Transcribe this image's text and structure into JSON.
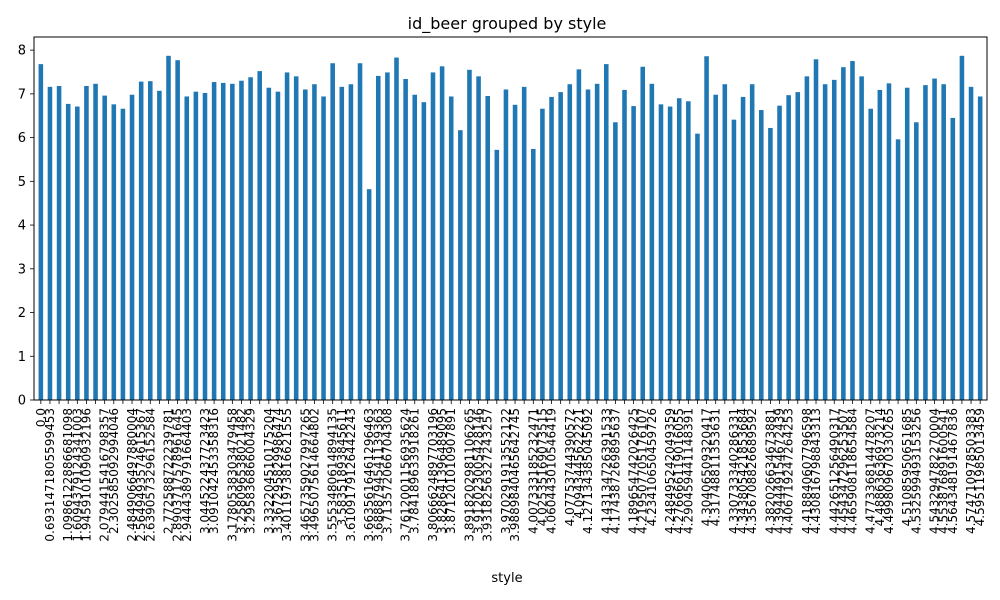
{
  "chart_data": {
    "type": "bar",
    "title": "id_beer grouped by style",
    "xlabel": "style",
    "ylabel": "",
    "ylim": [
      0,
      8.3
    ],
    "yticks": [
      0,
      1,
      2,
      3,
      4,
      5,
      6,
      7,
      8
    ],
    "ytick_labels": [
      "0",
      "1",
      "2",
      "3",
      "4",
      "5",
      "6",
      "7",
      "8"
    ],
    "bar_color": "#1f77b4",
    "grid": false,
    "legend": "none",
    "x_tick_labels_visible": [
      "0.0",
      "0.6931471805599453",
      "1.0986122886681098",
      "1.6094379124341003",
      "1.9459101090932196",
      "2.0794415416798357",
      "2.302585092994046",
      "2.4849066497880004",
      "2.5649493574615367",
      "2.6390573296152584",
      "2.772588722239781",
      "2.8903717578961645",
      "2.9444389791664403",
      "3.044522437723423",
      "3.091042453358316",
      "3.1780538303479458",
      "3.258096538021482",
      "3.295836866004329",
      "3.332204510175204",
      "3.367295829986474",
      "3.4011973816621555",
      "3.4657359027997265",
      "3.4965075614664802",
      "3.5553480614894135",
      "3.58351893845611",
      "3.6109179126442243",
      "3.6635616461296463",
      "3.6888794541139363",
      "3.713572066704308",
      "3.7612001156935624",
      "3.784189633918261",
      "3.8066624897703196",
      "3.828641396489095",
      "3.871201010907891",
      "3.8918202981106265",
      "3.912023005428146",
      "3.9318256327243257",
      "3.970291913552122",
      "3.9889840465642745",
      "4.007333185232471",
      "4.02535169073515",
      "4.060443010546419",
      "4.07753744390572",
      "4.0943445622221",
      "4.127134385045092",
      "4.143134726391533",
      "4.174387269895637",
      "4.189654742026425",
      "4.219507705176107",
      "4.23410650459726",
      "4.248495242049359",
      "4.276666119016055",
      "4.290459441148391",
      "4.30406509320417",
      "4.31748811353631",
      "4.330733340286331",
      "4.343805421853684",
      "4.356708826689592",
      "4.382026634673881",
      "4.394449154672439",
      "4.406719247264253",
      "4.418840607796598",
      "4.430816798843313",
      "4.442651256490317",
      "4.454347296253507",
      "4.465908118654584",
      "4.477336814478207",
      "4.48863636973214",
      "4.499809670330265",
      "4.51085950651685",
      "4.532599493153256",
      "4.543294782270004",
      "4.553876891600541",
      "4.564348191467836",
      "4.574710978503383",
      "4.59511985013459"
    ],
    "values": [
      7.68,
      7.16,
      7.18,
      6.77,
      6.71,
      7.18,
      7.23,
      6.96,
      6.76,
      6.66,
      6.98,
      7.28,
      7.29,
      7.07,
      7.87,
      7.77,
      6.94,
      7.05,
      7.02,
      7.27,
      7.25,
      7.23,
      7.3,
      7.38,
      7.52,
      7.14,
      7.05,
      7.49,
      7.4,
      7.1,
      7.22,
      6.94,
      7.7,
      7.16,
      7.22,
      7.7,
      4.82,
      7.41,
      7.49,
      7.83,
      7.34,
      6.98,
      6.81,
      7.49,
      7.63,
      6.94,
      6.17,
      7.55,
      7.4,
      6.95,
      5.72,
      7.1,
      6.75,
      7.16,
      5.74,
      6.66,
      6.93,
      7.04,
      7.22,
      7.56,
      7.1,
      7.23,
      7.68,
      6.35,
      7.09,
      6.72,
      7.62,
      7.23,
      6.76,
      6.71,
      6.9,
      6.83,
      6.09,
      7.86,
      6.98,
      7.22,
      6.41,
      6.93,
      7.22,
      6.63,
      6.22,
      6.73,
      6.97,
      7.04,
      7.4,
      7.79,
      7.22,
      7.32,
      7.61,
      7.75,
      7.4,
      6.66,
      7.09,
      7.24,
      5.96,
      7.14,
      6.35,
      7.2,
      7.35,
      7.22,
      6.45,
      7.87,
      7.16,
      6.94
    ]
  }
}
